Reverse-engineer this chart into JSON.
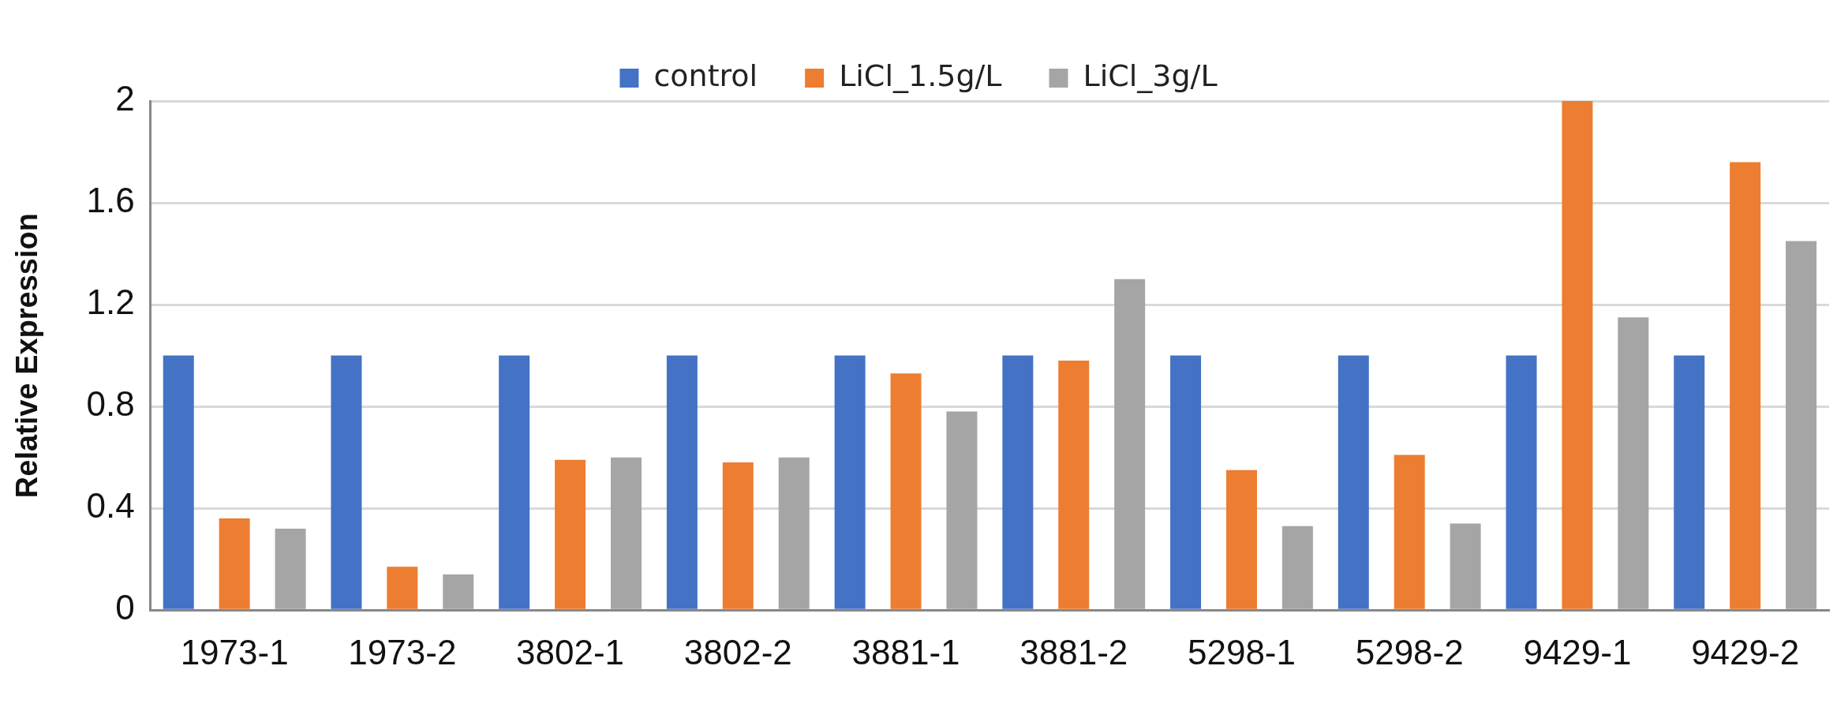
{
  "chart_data": {
    "type": "bar",
    "ylabel": "Relative Expression",
    "categories": [
      "1973-1",
      "1973-2",
      "3802-1",
      "3802-2",
      "3881-1",
      "3881-2",
      "5298-1",
      "5298-2",
      "9429-1",
      "9429-2"
    ],
    "series": [
      {
        "name": "control",
        "color": "#4472c4",
        "values": [
          1,
          1,
          1,
          1,
          1,
          1,
          1,
          1,
          1,
          1
        ]
      },
      {
        "name": "LiCl_1.5g/L",
        "color": "#ed7d31",
        "values": [
          0.36,
          0.17,
          0.59,
          0.58,
          0.93,
          0.98,
          0.55,
          0.61,
          2,
          1.76
        ]
      },
      {
        "name": "LiCl_3g/L",
        "color": "#a5a5a5",
        "values": [
          0.32,
          0.14,
          0.6,
          0.6,
          0.78,
          1.3,
          0.33,
          0.34,
          1.15,
          1.45
        ]
      }
    ],
    "ylim": [
      0,
      2
    ],
    "yticks": [
      0,
      0.4,
      0.8,
      1.2,
      1.6,
      2
    ],
    "grid": "y",
    "legend": "top"
  }
}
